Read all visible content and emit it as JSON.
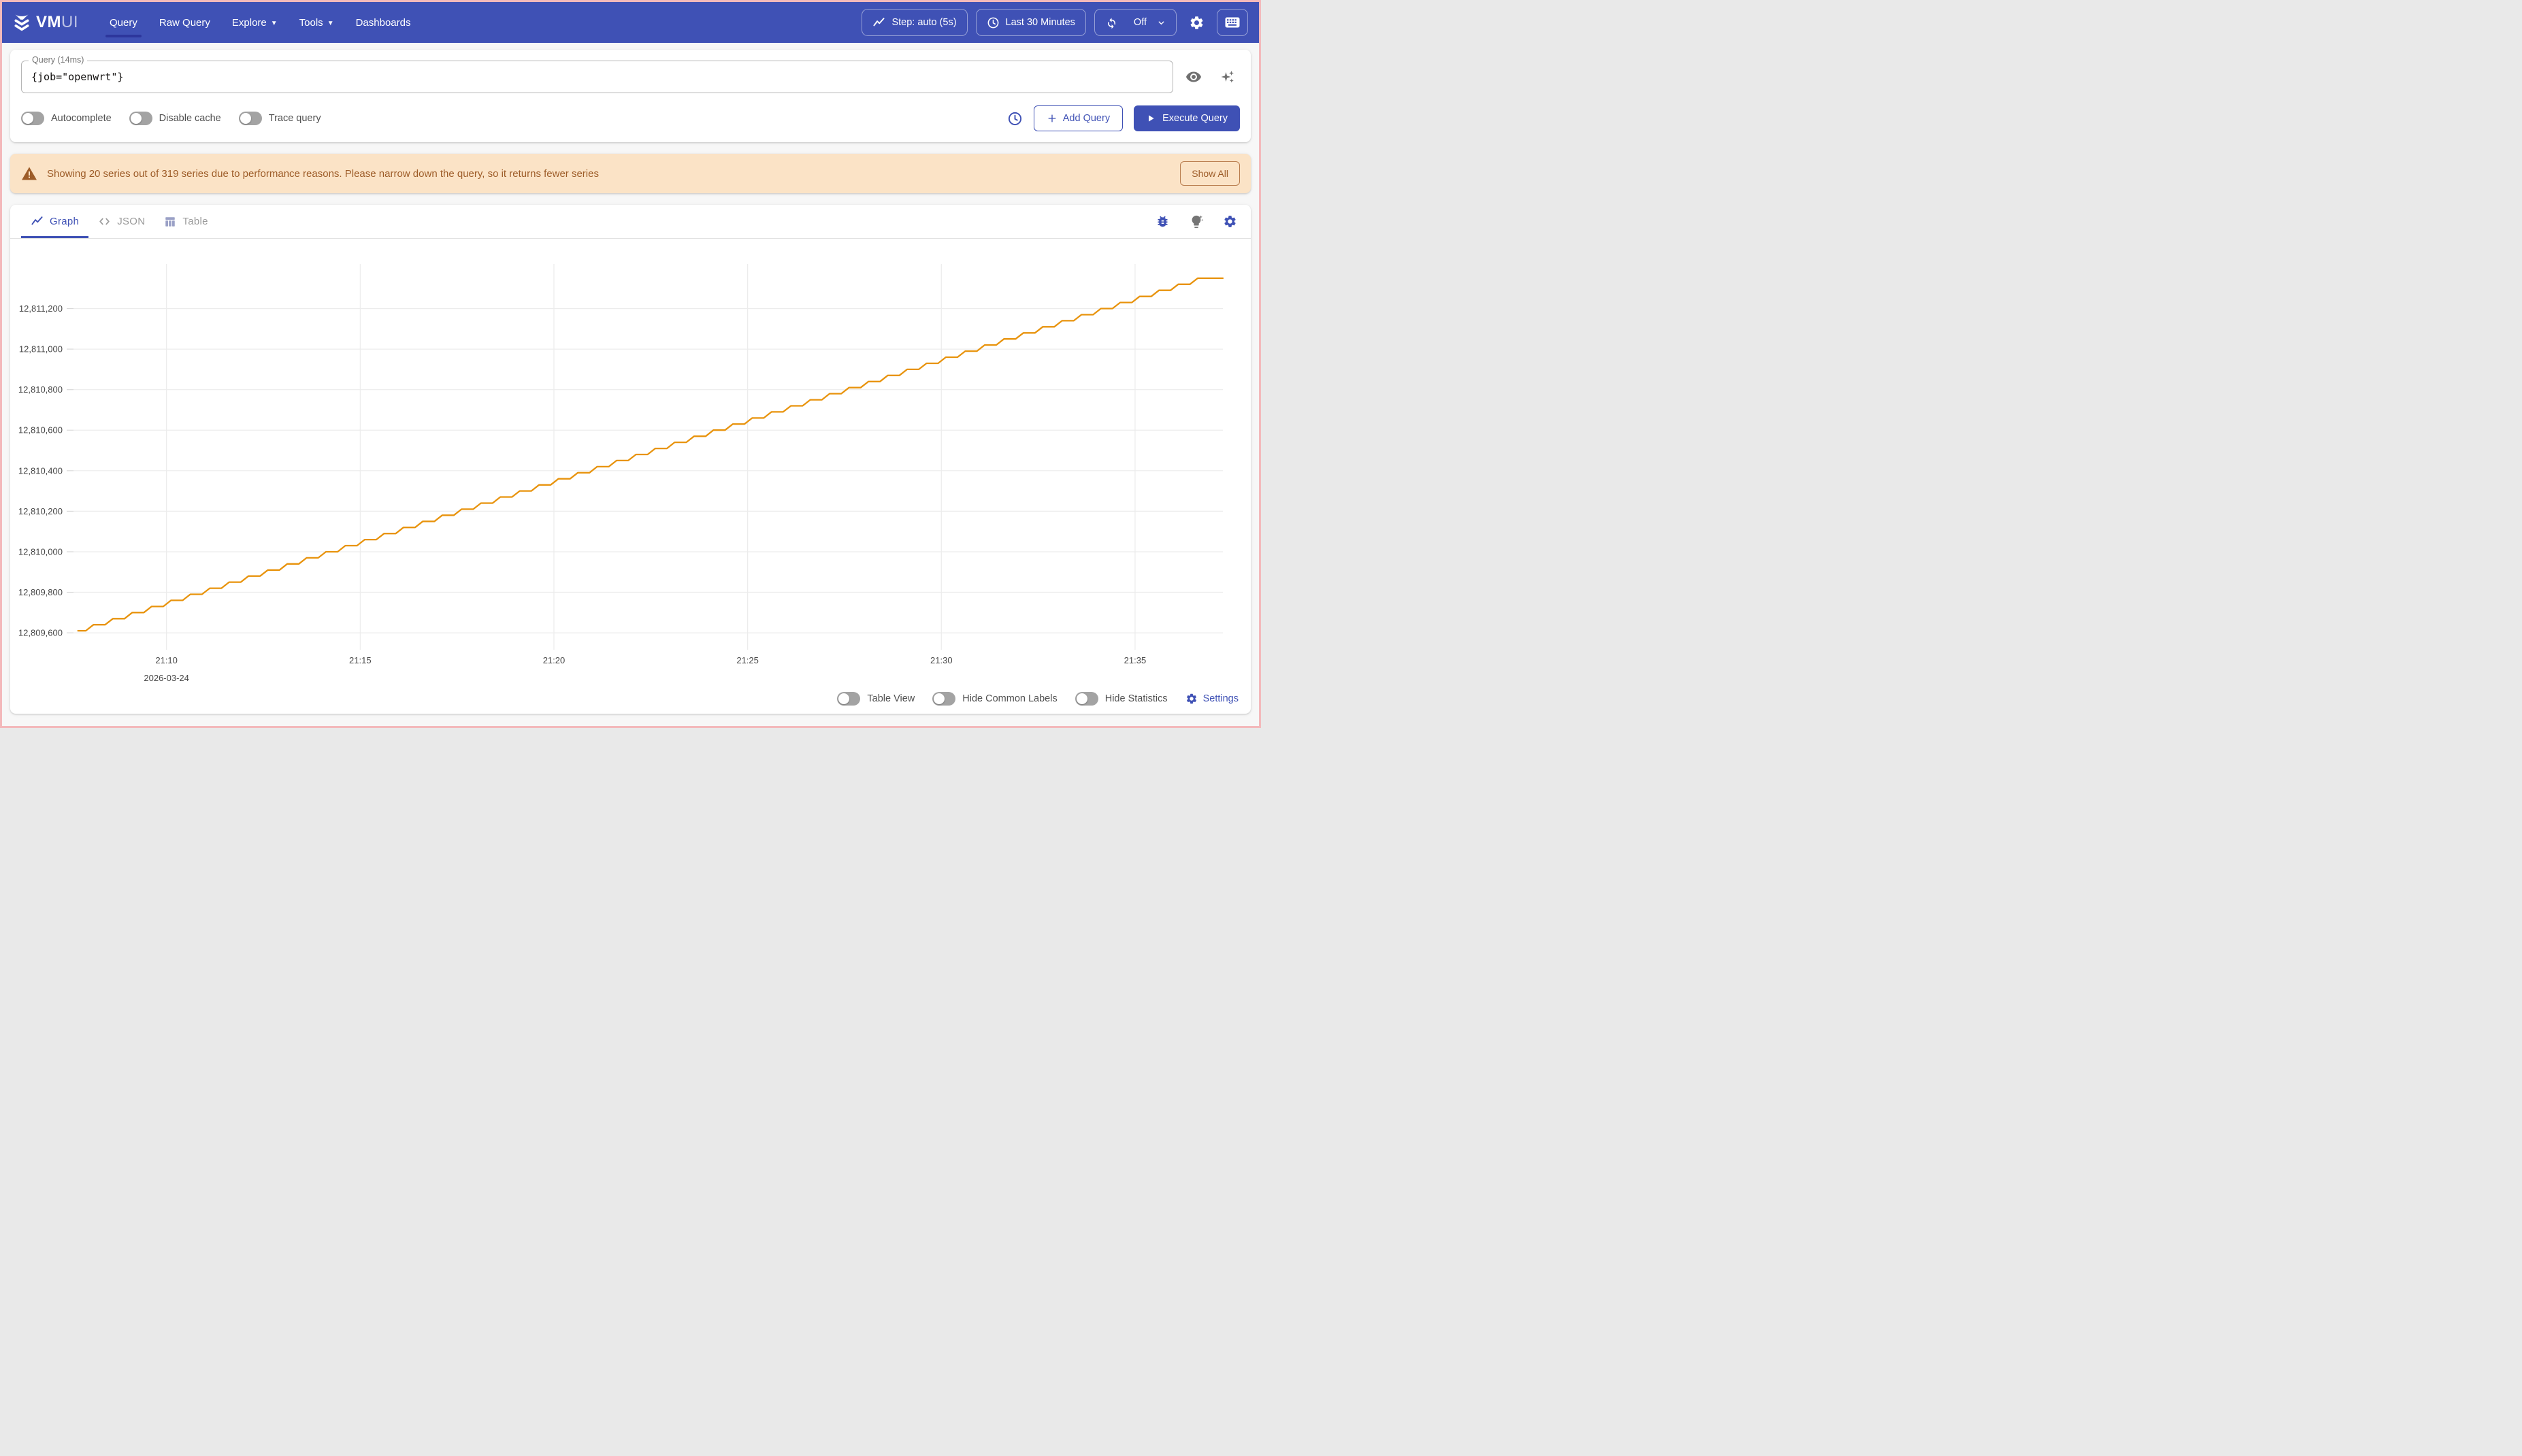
{
  "header": {
    "logo_bold": "VM",
    "logo_light": "UI",
    "nav": [
      {
        "label": "Query",
        "active": true
      },
      {
        "label": "Raw Query"
      },
      {
        "label": "Explore",
        "caret": true
      },
      {
        "label": "Tools",
        "caret": true
      },
      {
        "label": "Dashboards"
      }
    ],
    "step_button": "Step: auto (5s)",
    "time_range_button": "Last 30 Minutes",
    "refresh_state": "Off"
  },
  "query_panel": {
    "label": "Query (14ms)",
    "value": "{job=\"openwrt\"}",
    "toggles": [
      "Autocomplete",
      "Disable cache",
      "Trace query"
    ],
    "add_query_label": "Add Query",
    "execute_label": "Execute Query"
  },
  "warning": {
    "message": "Showing 20 series out of 319 series due to performance reasons. Please narrow down the query, so it returns fewer series",
    "action_label": "Show All"
  },
  "tabs": [
    {
      "label": "Graph",
      "active": true
    },
    {
      "label": "JSON"
    },
    {
      "label": "Table"
    }
  ],
  "footer_controls": {
    "toggles": [
      "Table View",
      "Hide Common Labels",
      "Hide Statistics"
    ],
    "settings_label": "Settings"
  },
  "colors": {
    "accent": "#3F51B5",
    "warning_bg": "#fbe3c6",
    "warning_text": "#9d5c28",
    "series_line": "#e8930c",
    "grid": "#ececec"
  },
  "chart_data": {
    "type": "line",
    "title": "",
    "xlabel": "",
    "ylabel": "",
    "legend": false,
    "grid": true,
    "grid_color": "#ececec",
    "date_label": "2026-03-24",
    "date_tick_seconds": 600,
    "x_range_seconds": [
      456,
      2236
    ],
    "y_range": [
      12809550,
      12811420
    ],
    "x_ticks": [
      {
        "label": "21:10",
        "seconds": 600
      },
      {
        "label": "21:15",
        "seconds": 900
      },
      {
        "label": "21:20",
        "seconds": 1200
      },
      {
        "label": "21:25",
        "seconds": 1500
      },
      {
        "label": "21:30",
        "seconds": 1800
      },
      {
        "label": "21:35",
        "seconds": 2100
      }
    ],
    "y_ticks": [
      {
        "label": "12,811,200",
        "value": 12811200
      },
      {
        "label": "12,811,000",
        "value": 12811000
      },
      {
        "label": "12,810,800",
        "value": 12810800
      },
      {
        "label": "12,810,600",
        "value": 12810600
      },
      {
        "label": "12,810,400",
        "value": 12810400
      },
      {
        "label": "12,810,200",
        "value": 12810200
      },
      {
        "label": "12,810,000",
        "value": 12810000
      },
      {
        "label": "12,809,800",
        "value": 12809800
      },
      {
        "label": "12,809,600",
        "value": 12809600
      }
    ],
    "layout": {
      "pl": 93,
      "pr": 1782,
      "pt": 37,
      "pb": 594
    },
    "series": [
      {
        "name": "{job=\"openwrt\"}",
        "color": "#e8930c",
        "shape": "staircase",
        "start_s": 463,
        "start_value": 12809610,
        "flat_until_s": 475,
        "steps": 58,
        "rise_seconds": 12,
        "flat_seconds": 18,
        "step_rise": 30,
        "end_value": 12811350,
        "tail_until_s": 2236
      }
    ]
  }
}
